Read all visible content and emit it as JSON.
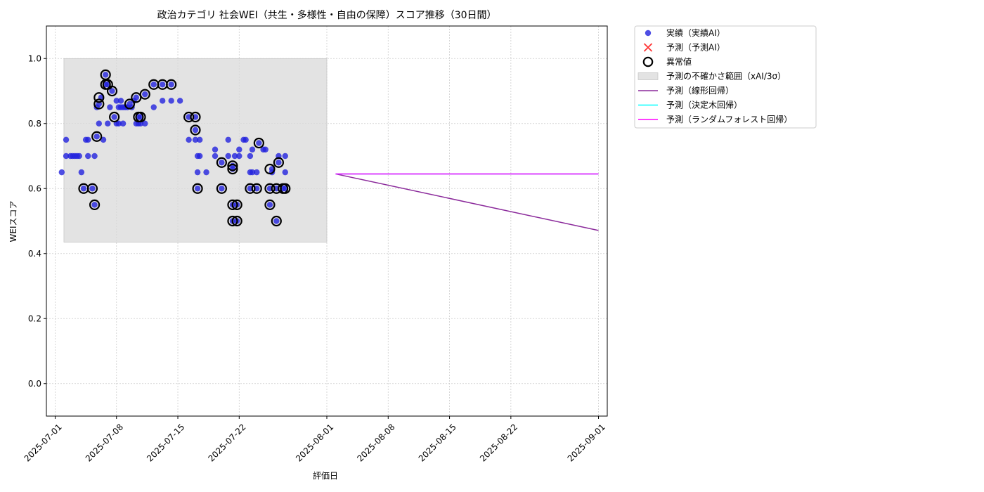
{
  "chart_data": {
    "type": "scatter",
    "title": "政治カテゴリ 社会WEI（共生・多様性・自由の保障）スコア推移（30日間）",
    "xlabel": "評価日",
    "ylabel": "WEIスコア",
    "xlim": [
      "2025-06-30",
      "2025-09-02"
    ],
    "ylim": [
      -0.1,
      1.1
    ],
    "x_ticks": [
      "2025-07-01",
      "2025-07-08",
      "2025-07-15",
      "2025-07-22",
      "2025-08-01",
      "2025-08-08",
      "2025-08-15",
      "2025-08-22",
      "2025-09-01"
    ],
    "y_ticks": [
      "0.0",
      "0.2",
      "0.4",
      "0.6",
      "0.8",
      "1.0"
    ],
    "grid": true,
    "legend_placement": "outside-upper-right",
    "colors": {
      "actual": "#2222dd",
      "predicted_ai": "#ff3333",
      "anomaly": "#000000",
      "uncertainty": "#d9d9d9",
      "linear": "#8b2a9b",
      "tree": "#00ffff",
      "forest": "#ff00ff"
    },
    "legend": [
      {
        "key": "actual",
        "label": "実績（実績AI）",
        "marker": "dot"
      },
      {
        "key": "predicted_ai",
        "label": "予測（予測AI）",
        "marker": "x"
      },
      {
        "key": "anomaly",
        "label": "異常値",
        "marker": "ring"
      },
      {
        "key": "uncertainty",
        "label": "予測の不確かさ範囲（xAI/3σ）",
        "marker": "band"
      },
      {
        "key": "linear",
        "label": "予測（線形回帰）",
        "marker": "line"
      },
      {
        "key": "tree",
        "label": "予測（決定木回帰）",
        "marker": "line"
      },
      {
        "key": "forest",
        "label": "予測（ランダムフォレスト回帰）",
        "marker": "line"
      }
    ],
    "uncertainty_band": {
      "x": [
        "2025-07-02",
        "2025-08-01"
      ],
      "y": [
        0.435,
        1.0
      ]
    },
    "actual_points": [
      [
        "2025-07-01T18:00",
        0.65
      ],
      [
        "2025-07-02T06:00",
        0.7
      ],
      [
        "2025-07-02T06:00",
        0.75
      ],
      [
        "2025-07-02T18:00",
        0.7
      ],
      [
        "2025-07-03T00:00",
        0.7
      ],
      [
        "2025-07-03T06:00",
        0.7
      ],
      [
        "2025-07-03T12:00",
        0.7
      ],
      [
        "2025-07-03T18:00",
        0.7
      ],
      [
        "2025-07-04T00:00",
        0.65
      ],
      [
        "2025-07-04T06:00",
        0.6
      ],
      [
        "2025-07-04T12:00",
        0.75
      ],
      [
        "2025-07-04T18:00",
        0.7
      ],
      [
        "2025-07-04T18:00",
        0.75
      ],
      [
        "2025-07-05T06:00",
        0.6
      ],
      [
        "2025-07-05T12:00",
        0.55
      ],
      [
        "2025-07-05T12:00",
        0.7
      ],
      [
        "2025-07-05T18:00",
        0.76
      ],
      [
        "2025-07-05T18:00",
        0.85
      ],
      [
        "2025-07-06T00:00",
        0.8
      ],
      [
        "2025-07-06T00:00",
        0.86
      ],
      [
        "2025-07-06T06:00",
        0.88
      ],
      [
        "2025-07-06T12:00",
        0.75
      ],
      [
        "2025-07-06T18:00",
        0.95
      ],
      [
        "2025-07-06T18:00",
        0.92
      ],
      [
        "2025-07-07T00:00",
        0.92
      ],
      [
        "2025-07-07T00:00",
        0.8
      ],
      [
        "2025-07-07T06:00",
        0.85
      ],
      [
        "2025-07-07T12:00",
        0.9
      ],
      [
        "2025-07-07T18:00",
        0.82
      ],
      [
        "2025-07-08T00:00",
        0.8
      ],
      [
        "2025-07-08T00:00",
        0.87
      ],
      [
        "2025-07-08T06:00",
        0.8
      ],
      [
        "2025-07-08T06:00",
        0.85
      ],
      [
        "2025-07-08T12:00",
        0.85
      ],
      [
        "2025-07-08T12:00",
        0.87
      ],
      [
        "2025-07-08T18:00",
        0.8
      ],
      [
        "2025-07-08T18:00",
        0.85
      ],
      [
        "2025-07-09T00:00",
        0.85
      ],
      [
        "2025-07-09T06:00",
        0.85
      ],
      [
        "2025-07-09T12:00",
        0.86
      ],
      [
        "2025-07-09T18:00",
        0.85
      ],
      [
        "2025-07-10T00:00",
        0.87
      ],
      [
        "2025-07-10T06:00",
        0.8
      ],
      [
        "2025-07-10T06:00",
        0.88
      ],
      [
        "2025-07-10T12:00",
        0.82
      ],
      [
        "2025-07-10T12:00",
        0.8
      ],
      [
        "2025-07-10T18:00",
        0.82
      ],
      [
        "2025-07-10T18:00",
        0.8
      ],
      [
        "2025-07-11T06:00",
        0.8
      ],
      [
        "2025-07-11T06:00",
        0.89
      ],
      [
        "2025-07-12T06:00",
        0.85
      ],
      [
        "2025-07-12T06:00",
        0.92
      ],
      [
        "2025-07-13T06:00",
        0.92
      ],
      [
        "2025-07-13T06:00",
        0.87
      ],
      [
        "2025-07-14T06:00",
        0.92
      ],
      [
        "2025-07-14T06:00",
        0.87
      ],
      [
        "2025-07-15T06:00",
        0.87
      ],
      [
        "2025-07-16T06:00",
        0.82
      ],
      [
        "2025-07-16T06:00",
        0.75
      ],
      [
        "2025-07-17T00:00",
        0.82
      ],
      [
        "2025-07-17T00:00",
        0.78
      ],
      [
        "2025-07-17T00:00",
        0.75
      ],
      [
        "2025-07-17T06:00",
        0.7
      ],
      [
        "2025-07-17T06:00",
        0.65
      ],
      [
        "2025-07-17T06:00",
        0.6
      ],
      [
        "2025-07-17T12:00",
        0.75
      ],
      [
        "2025-07-17T12:00",
        0.7
      ],
      [
        "2025-07-18T06:00",
        0.65
      ],
      [
        "2025-07-19T06:00",
        0.72
      ],
      [
        "2025-07-19T06:00",
        0.7
      ],
      [
        "2025-07-20T00:00",
        0.68
      ],
      [
        "2025-07-20T00:00",
        0.6
      ],
      [
        "2025-07-20T18:00",
        0.75
      ],
      [
        "2025-07-20T18:00",
        0.7
      ],
      [
        "2025-07-21T06:00",
        0.55
      ],
      [
        "2025-07-21T06:00",
        0.5
      ],
      [
        "2025-07-21T06:00",
        0.67
      ],
      [
        "2025-07-21T06:00",
        0.66
      ],
      [
        "2025-07-21T12:00",
        0.7
      ],
      [
        "2025-07-21T18:00",
        0.55
      ],
      [
        "2025-07-21T18:00",
        0.5
      ],
      [
        "2025-07-22T00:00",
        0.72
      ],
      [
        "2025-07-22T00:00",
        0.7
      ],
      [
        "2025-07-22T12:00",
        0.75
      ],
      [
        "2025-07-22T18:00",
        0.75
      ],
      [
        "2025-07-23T06:00",
        0.65
      ],
      [
        "2025-07-23T06:00",
        0.7
      ],
      [
        "2025-07-23T06:00",
        0.6
      ],
      [
        "2025-07-23T12:00",
        0.72
      ],
      [
        "2025-07-23T12:00",
        0.65
      ],
      [
        "2025-07-24T00:00",
        0.6
      ],
      [
        "2025-07-24T00:00",
        0.65
      ],
      [
        "2025-07-24T06:00",
        0.74
      ],
      [
        "2025-07-24T18:00",
        0.72
      ],
      [
        "2025-07-25T00:00",
        0.72
      ],
      [
        "2025-07-25T12:00",
        0.6
      ],
      [
        "2025-07-25T12:00",
        0.55
      ],
      [
        "2025-07-25T18:00",
        0.66
      ],
      [
        "2025-07-25T18:00",
        0.65
      ],
      [
        "2025-07-26T06:00",
        0.6
      ],
      [
        "2025-07-26T06:00",
        0.5
      ],
      [
        "2025-07-26T12:00",
        0.7
      ],
      [
        "2025-07-26T12:00",
        0.68
      ],
      [
        "2025-07-27T00:00",
        0.6
      ],
      [
        "2025-07-27T06:00",
        0.65
      ],
      [
        "2025-07-27T06:00",
        0.7
      ],
      [
        "2025-07-27T06:00",
        0.6
      ]
    ],
    "anomaly_points": [
      [
        "2025-07-04T06:00",
        0.6
      ],
      [
        "2025-07-05T06:00",
        0.6
      ],
      [
        "2025-07-05T12:00",
        0.55
      ],
      [
        "2025-07-05T18:00",
        0.76
      ],
      [
        "2025-07-06T00:00",
        0.86
      ],
      [
        "2025-07-06T00:00",
        0.88
      ],
      [
        "2025-07-06T18:00",
        0.95
      ],
      [
        "2025-07-06T18:00",
        0.92
      ],
      [
        "2025-07-07T00:00",
        0.92
      ],
      [
        "2025-07-07T12:00",
        0.9
      ],
      [
        "2025-07-07T18:00",
        0.82
      ],
      [
        "2025-07-09T12:00",
        0.86
      ],
      [
        "2025-07-10T06:00",
        0.88
      ],
      [
        "2025-07-10T12:00",
        0.82
      ],
      [
        "2025-07-10T18:00",
        0.82
      ],
      [
        "2025-07-11T06:00",
        0.89
      ],
      [
        "2025-07-12T06:00",
        0.92
      ],
      [
        "2025-07-13T06:00",
        0.92
      ],
      [
        "2025-07-14T06:00",
        0.92
      ],
      [
        "2025-07-16T06:00",
        0.82
      ],
      [
        "2025-07-17T00:00",
        0.82
      ],
      [
        "2025-07-17T00:00",
        0.78
      ],
      [
        "2025-07-17T06:00",
        0.6
      ],
      [
        "2025-07-20T00:00",
        0.68
      ],
      [
        "2025-07-20T00:00",
        0.6
      ],
      [
        "2025-07-21T06:00",
        0.55
      ],
      [
        "2025-07-21T06:00",
        0.5
      ],
      [
        "2025-07-21T06:00",
        0.67
      ],
      [
        "2025-07-21T06:00",
        0.66
      ],
      [
        "2025-07-21T18:00",
        0.55
      ],
      [
        "2025-07-21T18:00",
        0.5
      ],
      [
        "2025-07-23T06:00",
        0.6
      ],
      [
        "2025-07-24T00:00",
        0.6
      ],
      [
        "2025-07-24T06:00",
        0.74
      ],
      [
        "2025-07-25T12:00",
        0.66
      ],
      [
        "2025-07-25T12:00",
        0.6
      ],
      [
        "2025-07-25T12:00",
        0.55
      ],
      [
        "2025-07-26T06:00",
        0.6
      ],
      [
        "2025-07-26T06:00",
        0.5
      ],
      [
        "2025-07-26T12:00",
        0.68
      ],
      [
        "2025-07-27T00:00",
        0.6
      ],
      [
        "2025-07-27T06:00",
        0.6
      ]
    ],
    "series": [
      {
        "key": "linear",
        "x": [
          "2025-08-02",
          "2025-09-01"
        ],
        "y": [
          0.645,
          0.471
        ]
      },
      {
        "key": "tree",
        "x": [
          "2025-08-02",
          "2025-09-01"
        ],
        "y": [
          0.645,
          0.645
        ]
      },
      {
        "key": "forest",
        "x": [
          "2025-08-02",
          "2025-09-01"
        ],
        "y": [
          0.645,
          0.645
        ]
      }
    ]
  }
}
